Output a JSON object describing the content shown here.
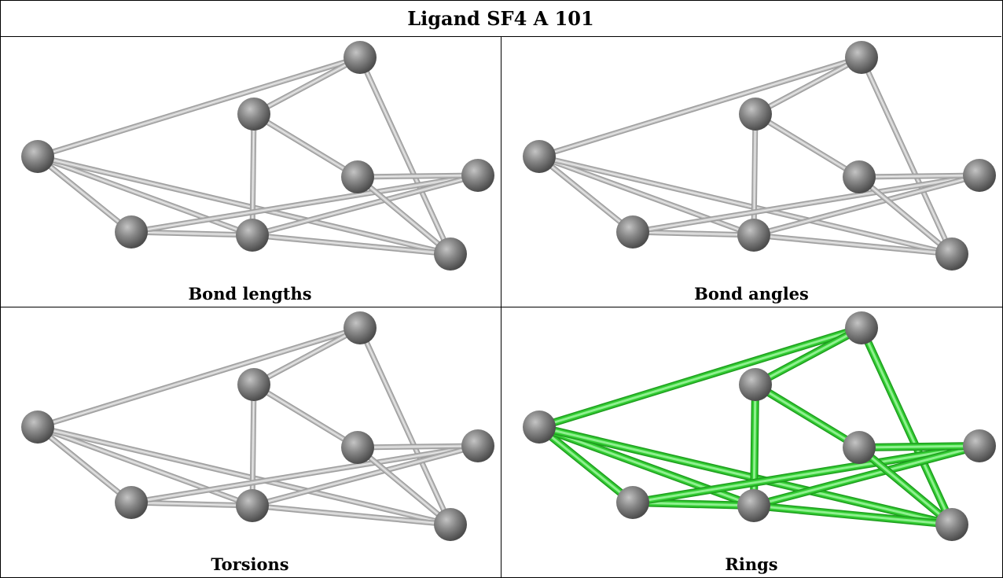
{
  "title": "Ligand SF4 A 101",
  "panels": [
    {
      "caption": "Bond lengths",
      "highlight": false
    },
    {
      "caption": "Bond angles",
      "highlight": false
    },
    {
      "caption": "Torsions",
      "highlight": false
    },
    {
      "caption": "Rings",
      "highlight": true
    }
  ],
  "colors": {
    "bond_default": "#c8c8c8",
    "bond_highlight": "#33cc33",
    "atom": "#808080"
  }
}
